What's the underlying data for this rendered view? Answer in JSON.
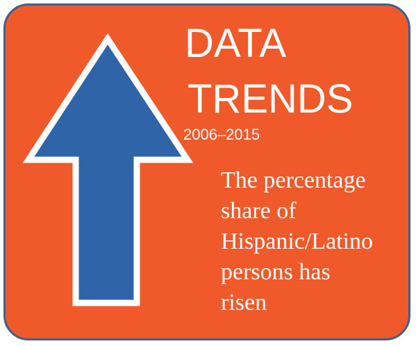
{
  "graphic": {
    "title_line1": "DATA",
    "title_line2": "TRENDS",
    "years": "2006–2015",
    "statement_lines": [
      "The percentage",
      "share of",
      "Hispanic/Latino",
      "persons has",
      "risen"
    ],
    "arrow_icon": "up-arrow-icon",
    "colors": {
      "background": "#f05a2a",
      "border": "#3b5f93",
      "arrow_fill": "#2f64a8",
      "arrow_outline": "#ffffff",
      "text": "#ffffff"
    }
  }
}
